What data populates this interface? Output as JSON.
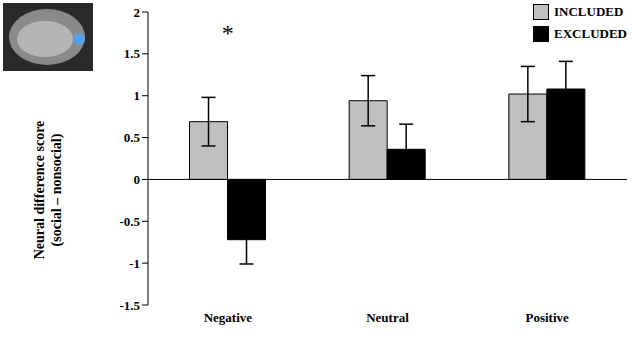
{
  "chart_data": {
    "type": "bar",
    "y_label": "Neural difference score (social – nonsocial)",
    "categories": [
      "Negative",
      "Neutral",
      "Positive"
    ],
    "series": [
      {
        "name": "INCLUDED",
        "color": "#bfbfbf",
        "values": [
          0.69,
          0.94,
          1.02
        ],
        "errors": [
          0.29,
          0.3,
          0.33
        ]
      },
      {
        "name": "EXCLUDED",
        "color": "#000000",
        "values": [
          -0.72,
          0.36,
          1.08
        ],
        "errors": [
          0.29,
          0.3,
          0.33
        ]
      }
    ],
    "ylim": [
      -1.5,
      2
    ],
    "yticks": [
      -1.5,
      -1,
      -0.5,
      0,
      0.5,
      1,
      1.5,
      2
    ],
    "grid": false,
    "legend": "upper right",
    "annotations": [
      {
        "text": "*",
        "category": "Negative",
        "y": 1.75
      }
    ]
  }
}
